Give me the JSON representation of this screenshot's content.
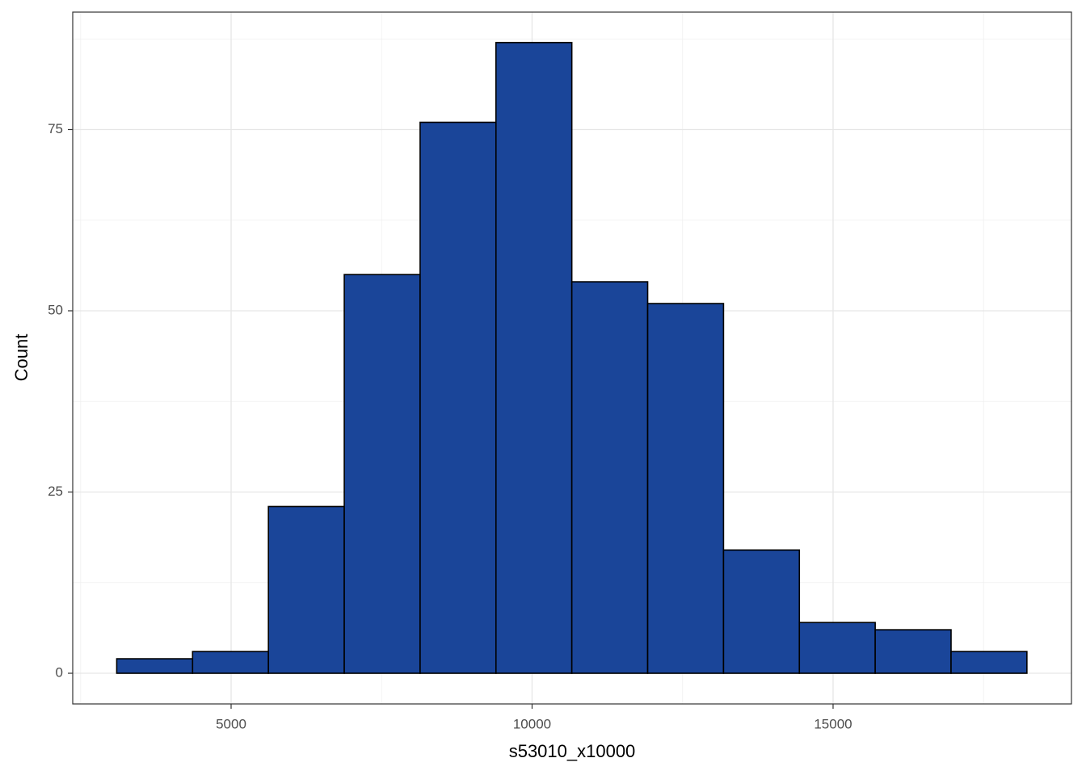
{
  "chart_data": {
    "type": "histogram",
    "x_label": "s53010_x10000",
    "y_label": "Count",
    "bins": [
      3100,
      4360,
      5620,
      6880,
      8140,
      9400,
      10660,
      11920,
      13180,
      14440,
      15700,
      16960,
      18220
    ],
    "values": [
      2,
      3,
      23,
      55,
      76,
      87,
      54,
      51,
      17,
      7,
      6,
      3
    ],
    "color": "#1a4599",
    "edge_color": "#000000",
    "xlim": [
      2369,
      18960
    ],
    "xticks": [
      5000,
      10000,
      15000
    ],
    "ylim": [
      -4.23,
      91.2
    ],
    "yticks": [
      0,
      25,
      50,
      75
    ],
    "grid": true
  }
}
